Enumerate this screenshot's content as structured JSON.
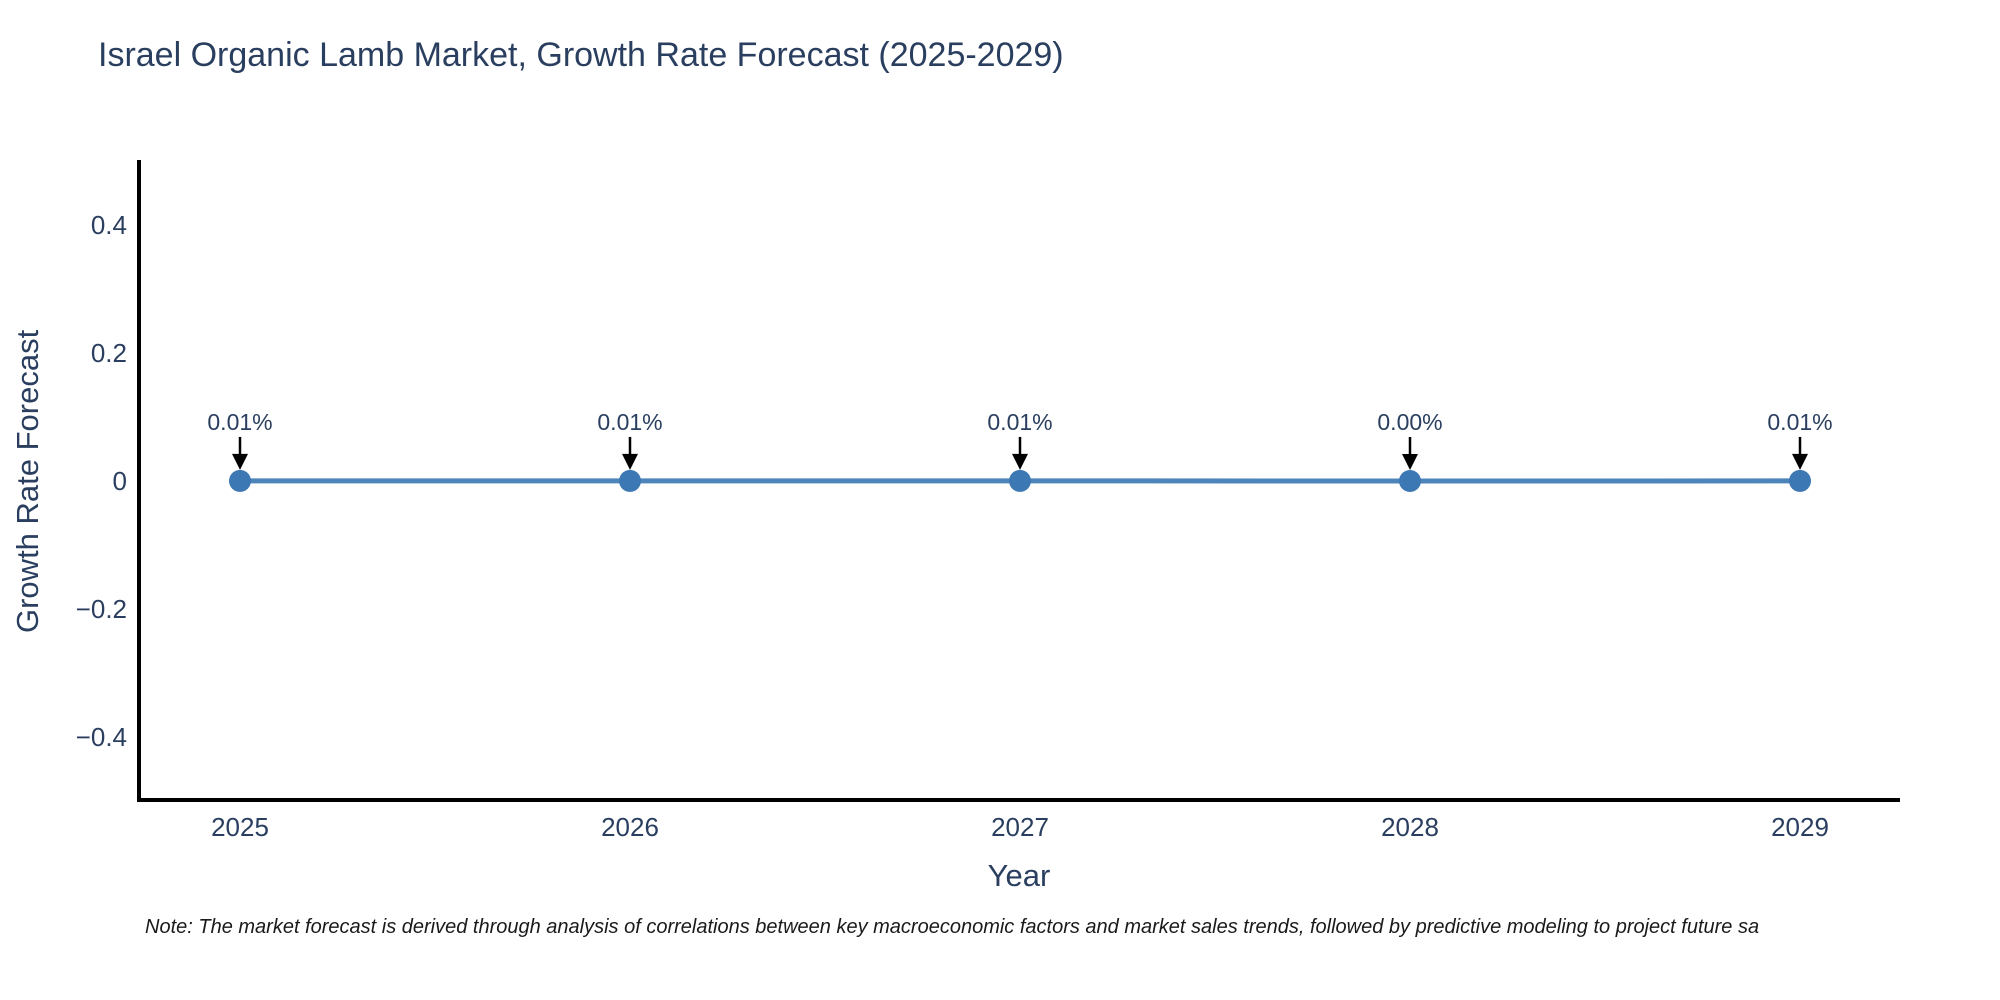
{
  "page": {
    "title": "Israel Organic Lamb Market, Growth Rate Forecast (2025-2029)",
    "note": "Note: The market forecast is derived through analysis of correlations between key macroeconomic factors and market sales trends, followed by predictive modeling to project future sa"
  },
  "chart_data": {
    "type": "line",
    "title": "Israel Organic Lamb Market, Growth Rate Forecast (2025-2029)",
    "xlabel": "Year",
    "ylabel": "Growth Rate Forecast",
    "categories": [
      "2025",
      "2026",
      "2027",
      "2028",
      "2029"
    ],
    "values_percent": [
      0.01,
      0.01,
      0.01,
      0.0,
      0.01
    ],
    "point_labels": [
      "0.01%",
      "0.01%",
      "0.01%",
      "0.00%",
      "0.01%"
    ],
    "ytick_labels": [
      "0.4",
      "0.2",
      "0",
      "−0.2",
      "−0.4"
    ],
    "ytick_values": [
      0.4,
      0.2,
      0,
      -0.2,
      -0.4
    ],
    "ylim": [
      -0.5,
      0.5
    ],
    "grid": false,
    "legend_position": "none",
    "annotation_style": "arrow-down-to-point",
    "colors": {
      "line": "#4d84ba",
      "marker": "#3c78b4",
      "axis": "#000000",
      "text": "#2a3f5f",
      "annotation_arrow": "#000000",
      "note_text": "#1a1a1a",
      "background": "#ffffff"
    }
  }
}
